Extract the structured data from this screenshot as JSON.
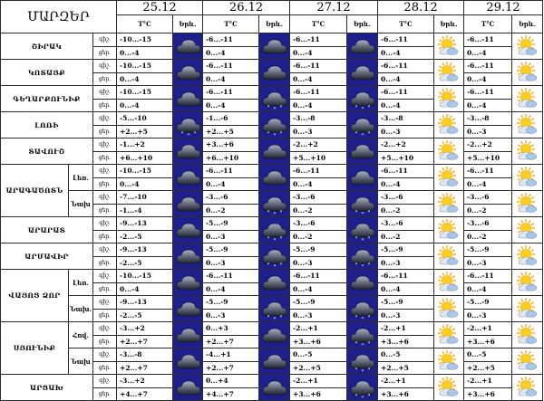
{
  "header": {
    "region_col": "ՄԱՐԶԵՐ",
    "temp_label": "T°C",
    "icon_label": "Երև.",
    "dates": [
      "25.12",
      "26.12",
      "27.12",
      "28.12",
      "29.12"
    ]
  },
  "labels": {
    "night": "գիշ.",
    "day": "ցեր."
  },
  "regions": [
    {
      "name": "ՇԻՐԱԿ",
      "rows": [
        {
          "sub": "",
          "night": [
            "-10...-15",
            "-6...-11",
            "-6...-11",
            "-6...-11",
            "-6...-11"
          ],
          "day": [
            "0...-4",
            "0...-4",
            "0...-4",
            "0...-4",
            "0...-4"
          ],
          "icons": [
            "cloud-night-icon",
            "cloud-night-icon",
            "cloud-night-icon",
            "sun-cloud-icon",
            "sun-cloud-icon"
          ]
        }
      ]
    },
    {
      "name": "ԿՈՏԱՅՔ",
      "rows": [
        {
          "sub": "",
          "night": [
            "-10...-15",
            "-6...-11",
            "-6...-11",
            "-6...-11",
            "-6...-11"
          ],
          "day": [
            "0...-4",
            "0...-4",
            "0...-4",
            "0...-4",
            "0...-4"
          ],
          "icons": [
            "cloud-night-icon",
            "cloud-night-icon",
            "cloud-night-icon",
            "sun-cloud-icon",
            "sun-cloud-icon"
          ]
        }
      ]
    },
    {
      "name": "ԳԵՂԱՐՔՈՒՆԻՔ",
      "rows": [
        {
          "sub": "",
          "night": [
            "-10...-15",
            "-6...-11",
            "-6...-11",
            "-6...-11",
            "-6...-11"
          ],
          "day": [
            "0...-4",
            "0...-4",
            "0...-4",
            "0...-4",
            "0...-4"
          ],
          "icons": [
            "cloud-night-icon",
            "snow-cloud-night-icon",
            "snow-cloud-night-icon",
            "sun-cloud-icon",
            "sun-cloud-icon"
          ]
        }
      ]
    },
    {
      "name": "ԼՈՌԻ",
      "rows": [
        {
          "sub": "",
          "night": [
            "-5...-10",
            "-1...-6",
            "-3...-8",
            "-3...-8",
            "-3...-8"
          ],
          "day": [
            "+2...+5",
            "+2...+5",
            "0...-3",
            "0...-3",
            "0...-3"
          ],
          "icons": [
            "snow-cloud-night-icon",
            "snow-cloud-night-icon",
            "snow-cloud-night-icon",
            "sun-cloud-icon",
            "sun-cloud-icon"
          ]
        }
      ]
    },
    {
      "name": "ՏԱՎՈՒՇ",
      "rows": [
        {
          "sub": "",
          "night": [
            "-1...+2",
            "+3...+6",
            "-2...+2",
            "-2...+2",
            "-2...+2"
          ],
          "day": [
            "+6...+10",
            "+6...+10",
            "+5...+10",
            "+5...+10",
            "+5...+10"
          ],
          "icons": [
            "cloud-night-icon",
            "cloud-night-icon",
            "cloud-night-icon",
            "sun-cloud-icon",
            "sun-cloud-icon"
          ]
        }
      ]
    },
    {
      "name": "ԱՐԱԳԱԾՈՏՆ",
      "rows": [
        {
          "sub": "Լեռ.",
          "night": [
            "-10...-15",
            "-6...-11",
            "-6...-11",
            "-6...-11",
            "-6...-11"
          ],
          "day": [
            "0...-4",
            "0...-4",
            "0...-4",
            "0...-4",
            "0...-4"
          ],
          "icons": [
            "cloud-night-icon",
            "cloud-night-icon",
            "cloud-night-icon",
            "sun-cloud-icon",
            "sun-cloud-icon"
          ]
        },
        {
          "sub": "Նախ",
          "night": [
            "-7...-10",
            "-3...-6",
            "-3...-6",
            "-3...-6",
            "-3...-6"
          ],
          "day": [
            "-1...-4",
            "0...-2",
            "0...-2",
            "0...-2",
            "0...-2"
          ],
          "icons": [
            "cloud-night-icon",
            "snow-cloud-night-icon",
            "snow-cloud-night-icon",
            "sun-cloud-icon",
            "sun-cloud-icon"
          ]
        }
      ]
    },
    {
      "name": "ԱՐԱՐԱՏ",
      "rows": [
        {
          "sub": "",
          "night": [
            "-9...-13",
            "-5...-9",
            "-3...-6",
            "-3...-6",
            "-3...-6"
          ],
          "day": [
            "-2...-5",
            "0...-3",
            "0...-2",
            "0...-2",
            "0...-2"
          ],
          "icons": [
            "cloud-night-icon",
            "snow-cloud-night-icon",
            "snow-cloud-night-icon",
            "sun-cloud-icon",
            "sun-cloud-icon"
          ]
        }
      ]
    },
    {
      "name": "ԱՐՄԱՎԻՐ",
      "rows": [
        {
          "sub": "",
          "night": [
            "-9...-13",
            "-5...-9",
            "-5...-9",
            "-5...-9",
            "-5...-9"
          ],
          "day": [
            "-2...-5",
            "0...-3",
            "0...-3",
            "0...-3",
            "0...-3"
          ],
          "icons": [
            "cloud-night-icon",
            "snow-cloud-night-icon",
            "snow-cloud-night-icon",
            "sun-cloud-icon",
            "sun-cloud-icon"
          ]
        }
      ]
    },
    {
      "name": "ՎԱՅՈՑ ՁՈՐ",
      "rows": [
        {
          "sub": "Լեռ.",
          "night": [
            "-10...-15",
            "-6...-11",
            "-6...-11",
            "-6...-11",
            "-6...-11"
          ],
          "day": [
            "0...-4",
            "0...-4",
            "0...-4",
            "0...-4",
            "0...-4"
          ],
          "icons": [
            "cloud-night-icon",
            "cloud-night-icon",
            "cloud-night-icon",
            "sun-cloud-icon",
            "sun-cloud-icon"
          ]
        },
        {
          "sub": "Նախ.",
          "night": [
            "-9...-13",
            "-5...-9",
            "-5...-9",
            "-5...-9",
            "-5...-9"
          ],
          "day": [
            "-2...-5",
            "0...-3",
            "0...-3",
            "0...-3",
            "0...-3"
          ],
          "icons": [
            "cloud-night-icon",
            "snow-cloud-night-icon",
            "snow-cloud-night-icon",
            "sun-cloud-icon",
            "sun-cloud-icon"
          ]
        }
      ]
    },
    {
      "name": "ՍՅՈՒՆԻՔ",
      "rows": [
        {
          "sub": "Հով.",
          "night": [
            "-3...+2",
            "0...+3",
            "-2...+1",
            "-2...+1",
            "-2...+1"
          ],
          "day": [
            "+2...+7",
            "+2...+7",
            "+3...+6",
            "+3...+6",
            "+3...+6"
          ],
          "icons": [
            "cloud-night-icon",
            "cloud-night-icon",
            "snow-cloud-night-icon",
            "sun-cloud-icon",
            "sun-cloud-icon"
          ]
        },
        {
          "sub": "Նախ",
          "night": [
            "-3...-8",
            "-4...+1",
            "0...-5",
            "0...-5",
            "0...-5"
          ],
          "day": [
            "+2...+7",
            "+2...+7",
            "+2...+5",
            "+2...+5",
            "+2...+5"
          ],
          "icons": [
            "cloud-night-icon",
            "cloud-night-icon",
            "snow-cloud-night-icon",
            "sun-cloud-icon",
            "sun-cloud-icon"
          ]
        }
      ]
    },
    {
      "name": "ԱՐՑԱԽ",
      "rows": [
        {
          "sub": "",
          "night": [
            "-3...+2",
            "0...+4",
            "-2...+1",
            "-2...+1",
            "-2...+1"
          ],
          "day": [
            "+4...+7",
            "+4...+7",
            "+3...+6",
            "+3...+6",
            "+3...+6"
          ],
          "icons": [
            "cloud-night-icon",
            "cloud-night-icon",
            "snow-cloud-night-icon",
            "sun-cloud-icon",
            "sun-cloud-icon"
          ]
        }
      ]
    }
  ]
}
